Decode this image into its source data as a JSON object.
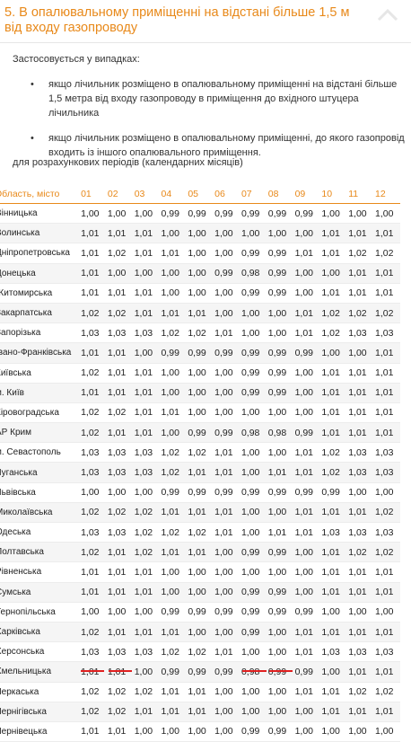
{
  "header": {
    "title": "5. В опалювальному приміщенні на відстані більше 1,5 м від входу газопроводу",
    "collapse_icon": "chevron-up-icon",
    "accent_color": "#e8891a"
  },
  "intro": "Застосовується у випадках:",
  "cases": [
    {
      "text": "якщо лічильник розміщено в опалювальному приміщенні на відстані більше 1,5 метра від входу газопроводу в приміщення до вхідного штуцера лічильника"
    },
    {
      "text": "якщо лічильник розміщено в опалювальному приміщенні, до якого газопровід входить із іншого опалювального приміщення."
    }
  ],
  "bullet": "•",
  "periods_label": "для розрахункових періодів (календарних місяців)",
  "table": {
    "region_header": "Область, місто",
    "months": [
      "01",
      "02",
      "03",
      "04",
      "05",
      "06",
      "07",
      "08",
      "09",
      "10",
      "11",
      "12"
    ],
    "rows": [
      {
        "region": "Вінницька",
        "values": [
          "1,00",
          "1,00",
          "1,00",
          "0,99",
          "0,99",
          "0,99",
          "0,99",
          "0,99",
          "0,99",
          "1,00",
          "1,00",
          "1,00"
        ]
      },
      {
        "region": "Волинська",
        "values": [
          "1,01",
          "1,01",
          "1,01",
          "1,00",
          "1,00",
          "1,00",
          "1,00",
          "1,00",
          "1,00",
          "1,01",
          "1,01",
          "1,01"
        ]
      },
      {
        "region": "Дніпропетровська",
        "values": [
          "1,01",
          "1,02",
          "1,01",
          "1,01",
          "1,00",
          "1,00",
          "0,99",
          "0,99",
          "1,01",
          "1,01",
          "1,02",
          "1,02"
        ]
      },
      {
        "region": "Донецька",
        "values": [
          "1,01",
          "1,00",
          "1,00",
          "1,00",
          "1,00",
          "0,99",
          "0,98",
          "0,99",
          "1,00",
          "1,00",
          "1,01",
          "1,01"
        ]
      },
      {
        "region": "Житомирська",
        "values": [
          "1,01",
          "1,01",
          "1,01",
          "1,00",
          "1,00",
          "1,00",
          "0,99",
          "0,99",
          "1,00",
          "1,01",
          "1,01",
          "1,01"
        ]
      },
      {
        "region": "Закарпатська",
        "values": [
          "1,02",
          "1,02",
          "1,01",
          "1,01",
          "1,01",
          "1,00",
          "1,00",
          "1,00",
          "1,01",
          "1,02",
          "1,02",
          "1,02"
        ]
      },
      {
        "region": "Запорізька",
        "values": [
          "1,03",
          "1,03",
          "1,03",
          "1,02",
          "1,02",
          "1,01",
          "1,00",
          "1,00",
          "1,01",
          "1,02",
          "1,03",
          "1,03"
        ]
      },
      {
        "region": "Івано-Франківська",
        "values": [
          "1,01",
          "1,01",
          "1,00",
          "0,99",
          "0,99",
          "0,99",
          "0,99",
          "0,99",
          "0,99",
          "1,00",
          "1,00",
          "1,01"
        ]
      },
      {
        "region": "Київська",
        "values": [
          "1,02",
          "1,01",
          "1,01",
          "1,00",
          "1,00",
          "1,00",
          "0,99",
          "0,99",
          "1,00",
          "1,01",
          "1,01",
          "1,01"
        ]
      },
      {
        "region": "м. Київ",
        "values": [
          "1,01",
          "1,01",
          "1,01",
          "1,00",
          "1,00",
          "1,00",
          "0,99",
          "0,99",
          "1,00",
          "1,01",
          "1,01",
          "1,01"
        ]
      },
      {
        "region": "Кіровоградська",
        "values": [
          "1,02",
          "1,02",
          "1,01",
          "1,01",
          "1,00",
          "1,00",
          "1,00",
          "1,00",
          "1,00",
          "1,01",
          "1,01",
          "1,01"
        ]
      },
      {
        "region": "АР Крим",
        "values": [
          "1,02",
          "1,01",
          "1,01",
          "1,00",
          "0,99",
          "0,99",
          "0,98",
          "0,98",
          "0,99",
          "1,01",
          "1,01",
          "1,01"
        ]
      },
      {
        "region": "м. Севастополь",
        "values": [
          "1,03",
          "1,03",
          "1,03",
          "1,02",
          "1,02",
          "1,01",
          "1,00",
          "1,00",
          "1,01",
          "1,02",
          "1,03",
          "1,03"
        ]
      },
      {
        "region": "Луганська",
        "values": [
          "1,03",
          "1,03",
          "1,03",
          "1,02",
          "1,01",
          "1,01",
          "1,00",
          "1,01",
          "1,01",
          "1,02",
          "1,03",
          "1,03"
        ]
      },
      {
        "region": "Львівська",
        "values": [
          "1,00",
          "1,00",
          "1,00",
          "0,99",
          "0,99",
          "0,99",
          "0,99",
          "0,99",
          "0,99",
          "0,99",
          "1,00",
          "1,00"
        ]
      },
      {
        "region": "Миколаївська",
        "values": [
          "1,02",
          "1,02",
          "1,02",
          "1,01",
          "1,01",
          "1,01",
          "1,00",
          "1,00",
          "1,01",
          "1,01",
          "1,01",
          "1,02"
        ]
      },
      {
        "region": "Одеська",
        "values": [
          "1,03",
          "1,03",
          "1,02",
          "1,02",
          "1,02",
          "1,01",
          "1,00",
          "1,01",
          "1,01",
          "1,03",
          "1,03",
          "1,03"
        ]
      },
      {
        "region": "Полтавська",
        "values": [
          "1,02",
          "1,01",
          "1,02",
          "1,01",
          "1,01",
          "1,00",
          "0,99",
          "0,99",
          "1,00",
          "1,01",
          "1,02",
          "1,02"
        ]
      },
      {
        "region": "Рівненська",
        "values": [
          "1,01",
          "1,01",
          "1,01",
          "1,00",
          "1,00",
          "1,00",
          "1,00",
          "1,00",
          "1,00",
          "1,01",
          "1,01",
          "1,01"
        ]
      },
      {
        "region": "Сумська",
        "values": [
          "1,01",
          "1,01",
          "1,01",
          "1,00",
          "1,00",
          "1,00",
          "0,99",
          "0,99",
          "1,00",
          "1,01",
          "1,01",
          "1,01"
        ]
      },
      {
        "region": "Тернопільська",
        "values": [
          "1,00",
          "1,00",
          "1,00",
          "0,99",
          "0,99",
          "0,99",
          "0,99",
          "0,99",
          "0,99",
          "1,00",
          "1,00",
          "1,00"
        ]
      },
      {
        "region": "Харківська",
        "values": [
          "1,02",
          "1,01",
          "1,01",
          "1,01",
          "1,00",
          "1,00",
          "0,99",
          "1,00",
          "1,01",
          "1,01",
          "1,01",
          "1,01"
        ]
      },
      {
        "region": "Херсонська",
        "values": [
          "1,03",
          "1,03",
          "1,03",
          "1,02",
          "1,02",
          "1,01",
          "1,00",
          "1,00",
          "1,01",
          "1,03",
          "1,03",
          "1,03"
        ]
      },
      {
        "region": "Хмельницька",
        "values": [
          "1,01",
          "1,01",
          "1,00",
          "0,99",
          "0,99",
          "0,99",
          "0,98",
          "0,99",
          "0,99",
          "1,00",
          "1,01",
          "1,01"
        ]
      },
      {
        "region": "Черкаська",
        "values": [
          "1,02",
          "1,02",
          "1,02",
          "1,01",
          "1,01",
          "1,00",
          "1,00",
          "1,00",
          "1,01",
          "1,01",
          "1,02",
          "1,02"
        ]
      },
      {
        "region": "Чернігівська",
        "values": [
          "1,02",
          "1,02",
          "1,01",
          "1,01",
          "1,01",
          "1,00",
          "1,00",
          "1,00",
          "1,00",
          "1,01",
          "1,01",
          "1,01"
        ]
      },
      {
        "region": "Чернівецька",
        "values": [
          "1,01",
          "1,01",
          "1,00",
          "1,00",
          "1,00",
          "1,00",
          "0,99",
          "0,99",
          "1,00",
          "1,00",
          "1,00",
          "1,00"
        ]
      }
    ]
  },
  "highlight_color": "#e02020"
}
